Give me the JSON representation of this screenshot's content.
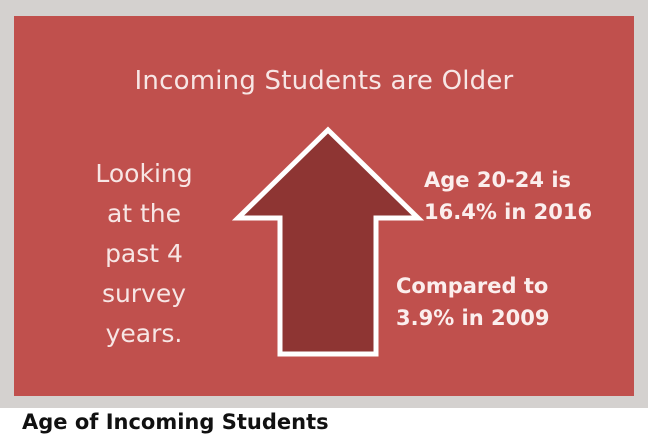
{
  "infographic": {
    "headline": "Incoming Students are Older",
    "left_text": [
      "Looking",
      "at the",
      "past 4",
      "survey",
      "years."
    ],
    "stat_recent": {
      "line1": "Age 20-24 is",
      "line2": "16.4% in 2016"
    },
    "stat_past": {
      "line1": "Compared to",
      "line2": "3.9% in 2009"
    },
    "icon": "up-arrow-icon",
    "colors": {
      "panel": "#c0504d",
      "arrow": "#8e3533",
      "text": "#f7e6e5"
    }
  },
  "caption": "Age of Incoming Students"
}
